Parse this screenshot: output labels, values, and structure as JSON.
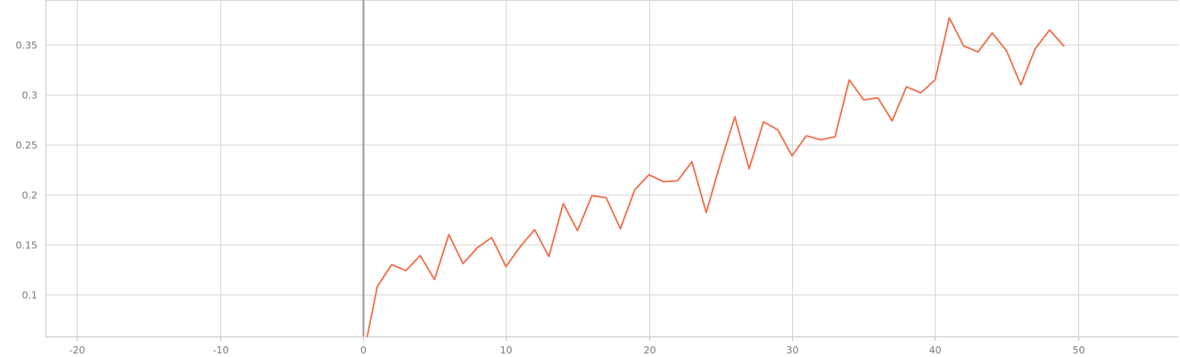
{
  "chart_data": {
    "type": "line",
    "xlim": [
      -22.2,
      57
    ],
    "ylim": [
      0.058,
      0.395
    ],
    "x_ticks": [
      -20,
      -10,
      0,
      10,
      20,
      30,
      40,
      50
    ],
    "y_ticks": [
      0.1,
      0.15,
      0.2,
      0.25,
      0.3,
      0.35
    ],
    "x_tick_labels": [
      "-20",
      "-10",
      "0",
      "10",
      "20",
      "30",
      "40",
      "50"
    ],
    "y_tick_labels": [
      "0.1",
      "0.15",
      "0.2",
      "0.25",
      "0.3",
      "0.35"
    ],
    "grid": true,
    "legend": "none",
    "color": "#f0704a",
    "series": [
      {
        "x": [
          0.3,
          1,
          2,
          3,
          4,
          5,
          6,
          7,
          8,
          9,
          10,
          11,
          12,
          13,
          14,
          15,
          16,
          17,
          18,
          19,
          20,
          21,
          22,
          23,
          24,
          25,
          26,
          27,
          28,
          29,
          30,
          31,
          32,
          33,
          34,
          35,
          36,
          37,
          38,
          39,
          40,
          41,
          42,
          43,
          44,
          45,
          46,
          47,
          48,
          49
        ],
        "y": [
          0.058,
          0.108,
          0.13,
          0.124,
          0.139,
          0.115,
          0.16,
          0.131,
          0.147,
          0.157,
          0.128,
          0.148,
          0.165,
          0.138,
          0.191,
          0.164,
          0.199,
          0.197,
          0.166,
          0.205,
          0.22,
          0.213,
          0.214,
          0.233,
          0.182,
          0.232,
          0.278,
          0.226,
          0.273,
          0.265,
          0.239,
          0.259,
          0.255,
          0.258,
          0.315,
          0.295,
          0.297,
          0.274,
          0.308,
          0.302,
          0.315,
          0.377,
          0.349,
          0.343,
          0.362,
          0.344,
          0.31,
          0.346,
          0.365,
          0.349
        ]
      }
    ]
  }
}
